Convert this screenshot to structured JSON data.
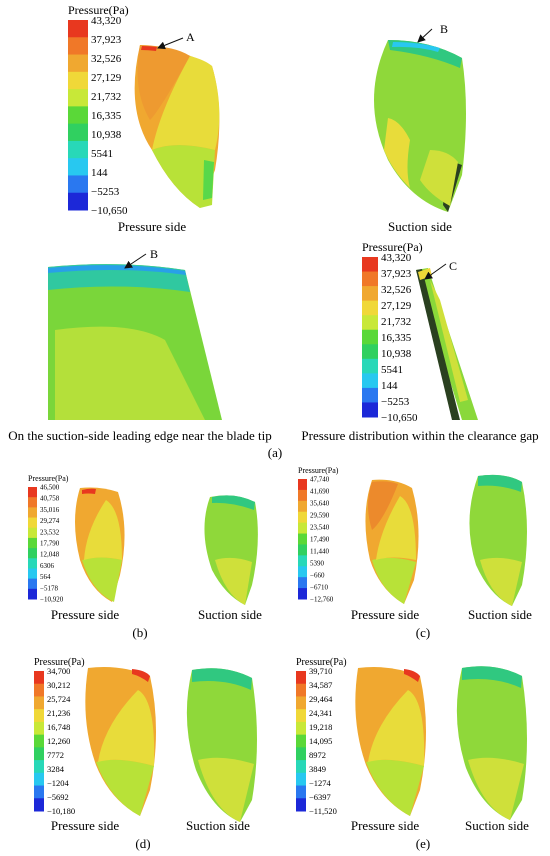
{
  "unit_label": "Pressure(Pa)",
  "colors": [
    "#e8381f",
    "#f07828",
    "#f0a830",
    "#f0d838",
    "#c8e838",
    "#5ad838",
    "#30d060",
    "#28d8b8",
    "#28c8f0",
    "#2a78f0",
    "#1c28d8"
  ],
  "panel_a": {
    "scale": [
      "43,320",
      "37,923",
      "32,526",
      "27,129",
      "21,732",
      "16,335",
      "10,938",
      "5541",
      "144",
      "−5253",
      "−10,650"
    ],
    "caption_pressure_side": "Pressure side",
    "caption_suction_side": "Suction side",
    "caption_leading_edge": "On the suction-side leading edge near the blade tip",
    "caption_clearance": "Pressure distribution within the clearance gap",
    "marker_a": "A",
    "marker_b": "B",
    "marker_b2": "B",
    "marker_c": "C",
    "label": "(a)"
  },
  "panel_b": {
    "scale": [
      "46,500",
      "40,758",
      "35,016",
      "29,274",
      "23,532",
      "17,790",
      "12,048",
      "6306",
      "564",
      "−5178",
      "−10,920"
    ],
    "caption_pressure_side": "Pressure side",
    "caption_suction_side": "Suction side",
    "label": "(b)"
  },
  "panel_c": {
    "scale": [
      "47,740",
      "41,690",
      "35,640",
      "29,590",
      "23,540",
      "17,490",
      "11,440",
      "5390",
      "−660",
      "−6710",
      "−12,760"
    ],
    "caption_pressure_side": "Pressure side",
    "caption_suction_side": "Suction side",
    "label": "(c)"
  },
  "panel_d": {
    "scale": [
      "34,700",
      "30,212",
      "25,724",
      "21,236",
      "16,748",
      "12,260",
      "7772",
      "3284",
      "−1204",
      "−5692",
      "−10,180"
    ],
    "caption_pressure_side": "Pressure side",
    "caption_suction_side": "Suction side",
    "label": "(d)"
  },
  "panel_e": {
    "scale": [
      "39,710",
      "34,587",
      "29,464",
      "24,341",
      "19,218",
      "14,095",
      "8972",
      "3849",
      "−1274",
      "−6397",
      "−11,520"
    ],
    "caption_pressure_side": "Pressure side",
    "caption_suction_side": "Suction side",
    "label": "(e)"
  }
}
